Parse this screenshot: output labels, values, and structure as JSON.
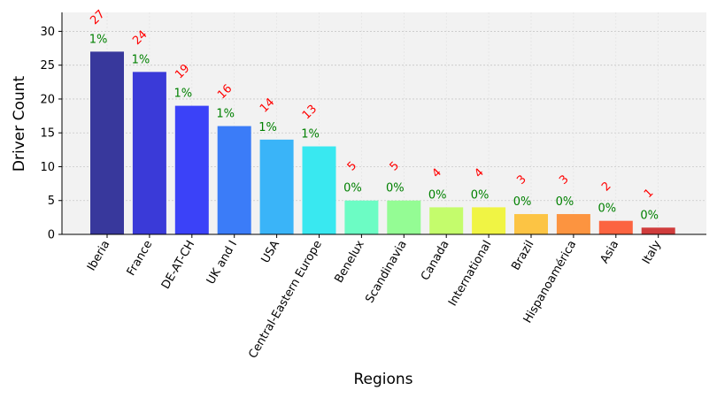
{
  "chart_data": {
    "type": "bar",
    "title": "",
    "xlabel": "Regions",
    "ylabel": "Driver Count",
    "categories": [
      "Iberia",
      "France",
      "DE-AT-CH",
      "UK and I",
      "USA",
      "Central-Eastern Europe",
      "Benelux",
      "Scandinavia",
      "Canada",
      "International",
      "Brazil",
      "Hispanoamérica",
      "Asia",
      "Italy"
    ],
    "values": [
      27,
      24,
      19,
      16,
      14,
      13,
      5,
      5,
      4,
      4,
      3,
      3,
      2,
      1
    ],
    "value_labels": [
      "27",
      "24",
      "19",
      "16",
      "14",
      "13",
      "5",
      "5",
      "4",
      "4",
      "3",
      "3",
      "2",
      "1"
    ],
    "percent_labels": [
      "1%",
      "1%",
      "1%",
      "1%",
      "1%",
      "1%",
      "0%",
      "0%",
      "0%",
      "0%",
      "0%",
      "0%",
      "0%",
      "0%"
    ],
    "bar_colors": [
      "#38389c",
      "#3a3ad8",
      "#3b42f8",
      "#3b7cf8",
      "#3ab4f8",
      "#39e8f0",
      "#6cfcc4",
      "#94fc94",
      "#c4fc6c",
      "#f0f444",
      "#fcc444",
      "#fc9440",
      "#fc6440",
      "#d03c3c"
    ],
    "value_label_color": "#ff0000",
    "percent_label_color": "#008000",
    "yticks": [
      0,
      5,
      10,
      15,
      20,
      25,
      30
    ],
    "ylim": [
      0,
      32.8
    ],
    "grid": true,
    "plot_background": "#f2f2f2"
  }
}
